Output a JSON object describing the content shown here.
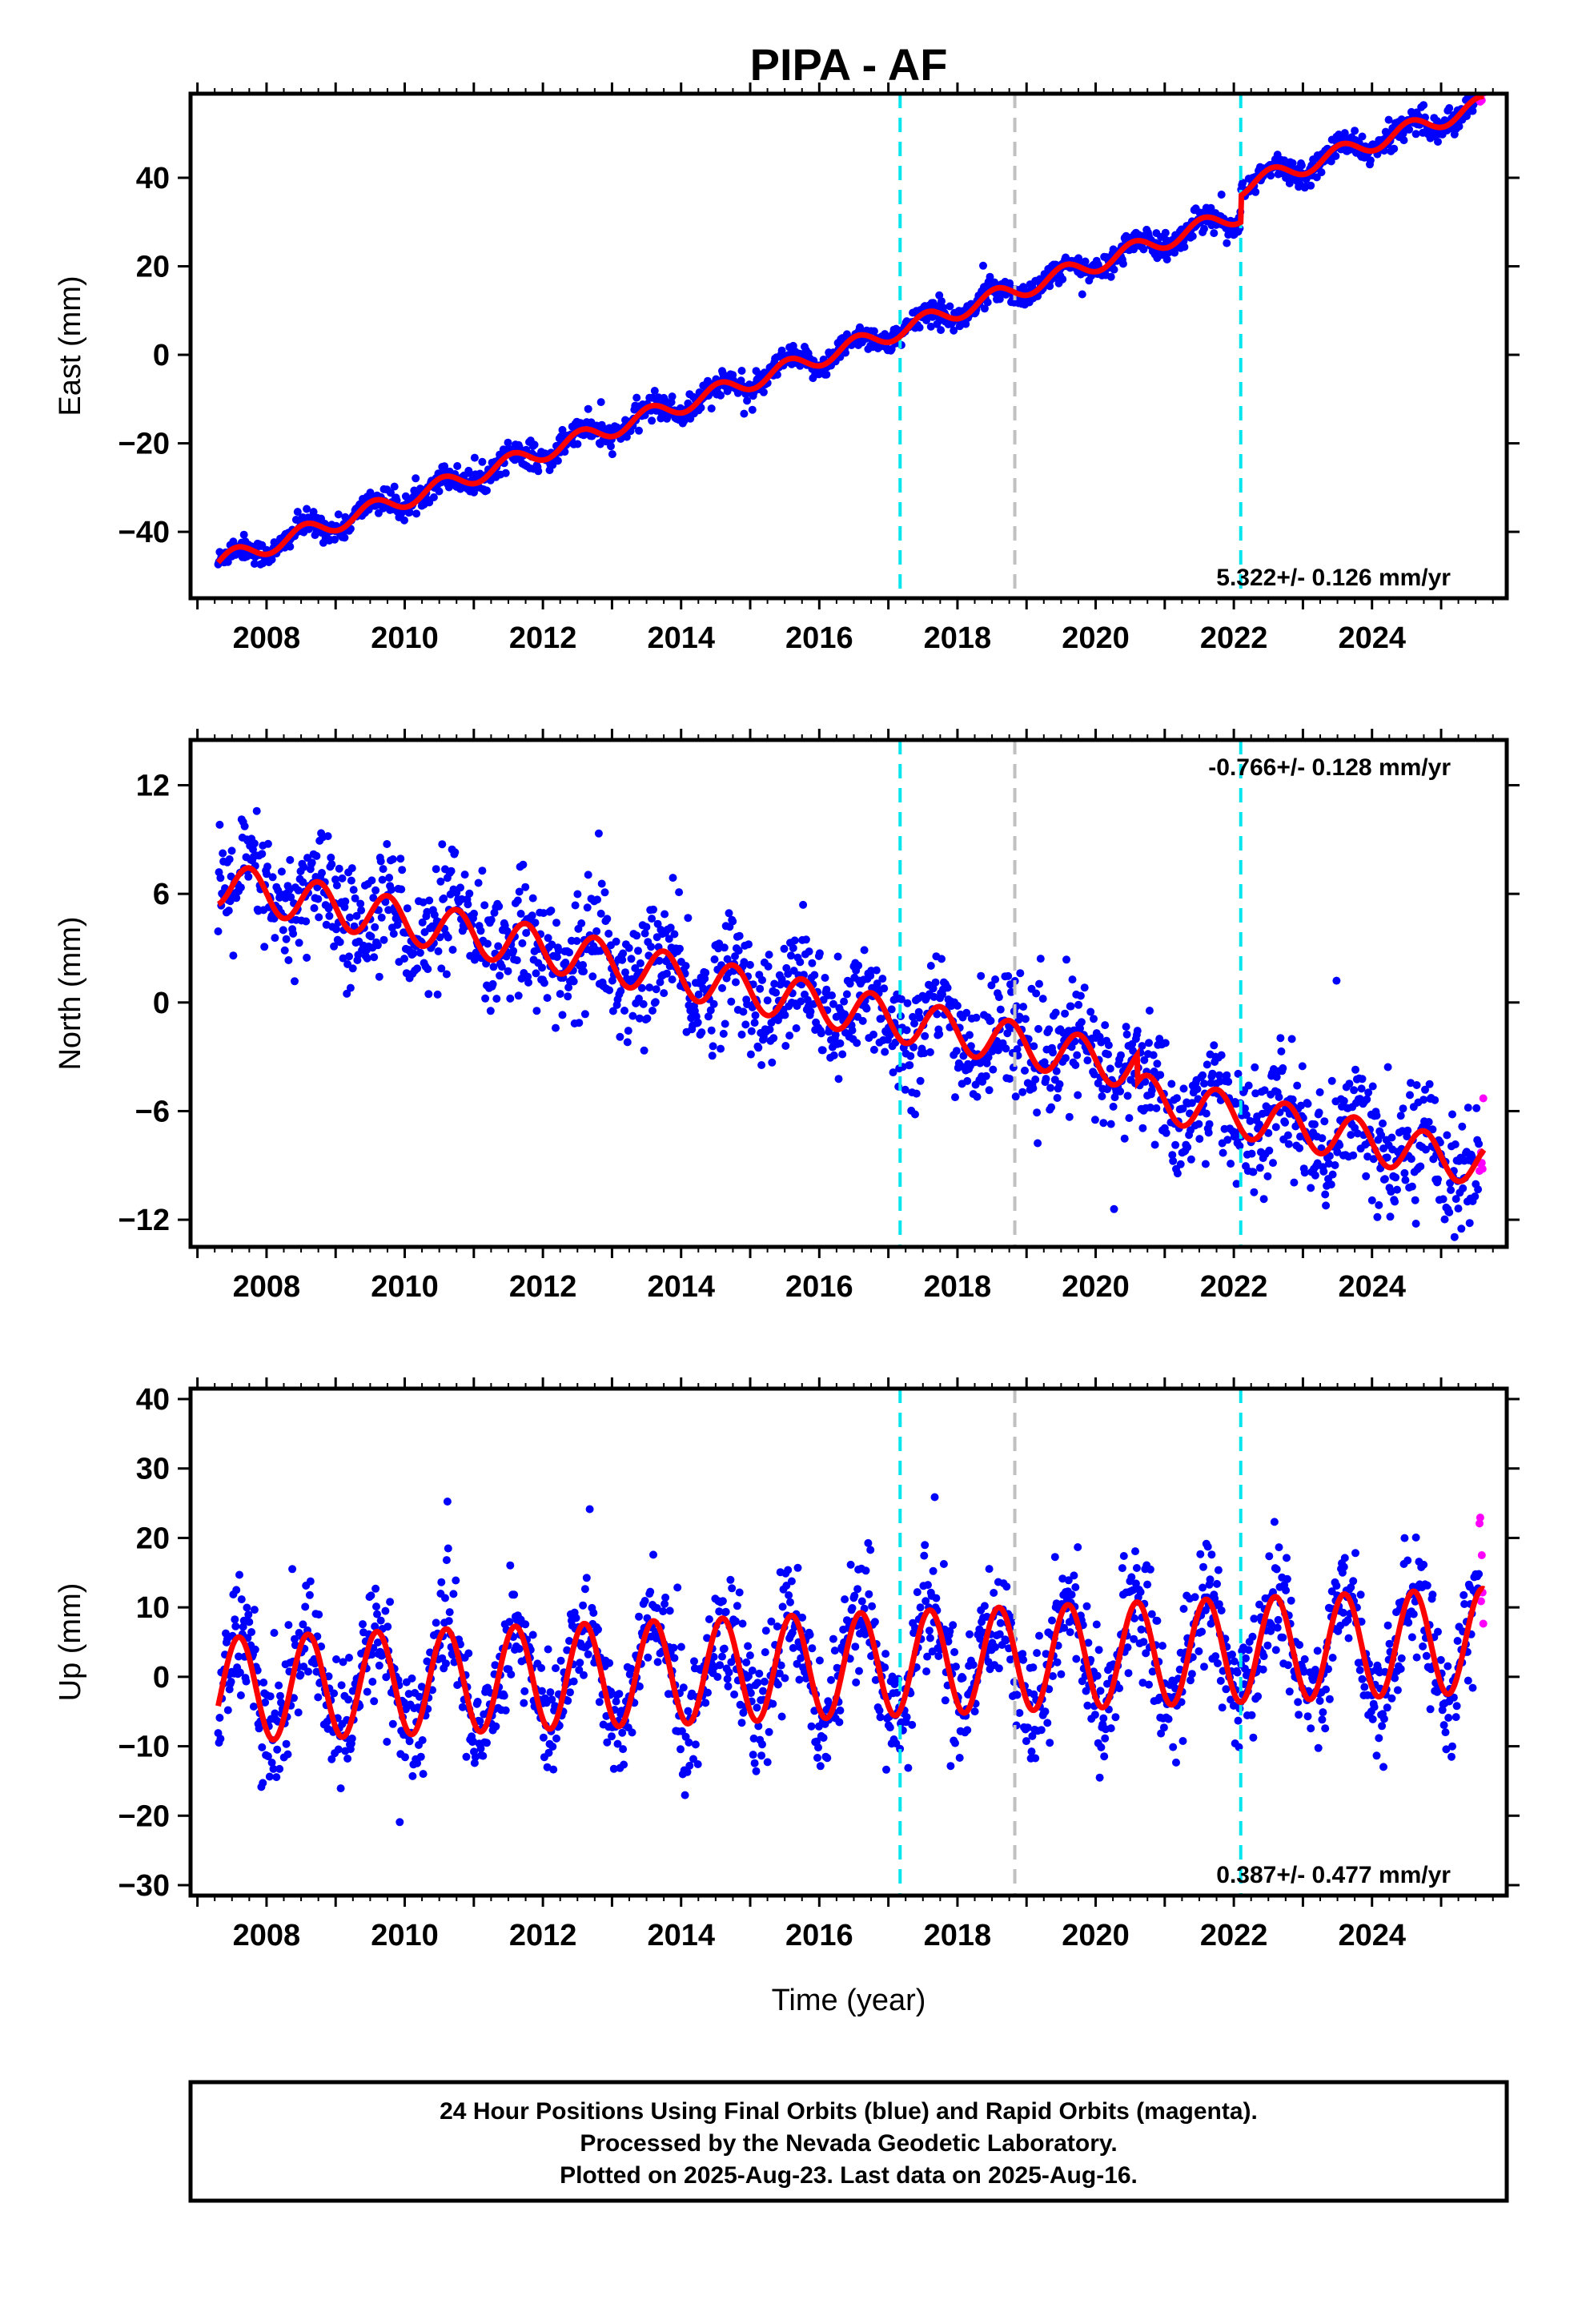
{
  "title": "PIPA - AF",
  "xlabel": "Time (year)",
  "footer": {
    "line1": "24 Hour Positions Using Final Orbits (blue) and Rapid Orbits (magenta).",
    "line2": "Processed by the Nevada Geodetic Laboratory.",
    "line3": "Plotted on 2025-Aug-23. Last data on 2025-Aug-16."
  },
  "colors": {
    "final_orbits": "#0000ff",
    "rapid_orbits": "#ff00ff",
    "model": "#ff0000",
    "equipment_change": "#00e5ee",
    "other_event": "#c0c0c0"
  },
  "chart_data": [
    {
      "type": "scatter",
      "component": "east",
      "ylabel": "East (mm)",
      "xlim": [
        2006.9,
        2025.95
      ],
      "ylim": [
        -55,
        59
      ],
      "xticks": [
        2008,
        2010,
        2012,
        2014,
        2016,
        2018,
        2020,
        2022,
        2024
      ],
      "yticks": [
        -40,
        -20,
        0,
        20,
        40
      ],
      "rate_text": "5.322+/- 0.126 mm/yr",
      "rate_position": "bottom-right",
      "trend": {
        "rate": 5.322,
        "value_at_2007": -48.5
      },
      "seasonal": {
        "amplitude": 2.0,
        "phase": 0.3
      },
      "scatter_sd": 1.4,
      "offsets": [
        {
          "year": 2022.1,
          "step": 6.0
        }
      ],
      "first_epoch": 2007.3,
      "last_epoch": 2025.62,
      "rapid_points_from": 2025.55,
      "vlines": [
        {
          "x": 2017.17,
          "color": "cyan"
        },
        {
          "x": 2018.83,
          "color": "gray"
        },
        {
          "x": 2022.1,
          "color": "cyan"
        }
      ],
      "series": [
        {
          "name": "Final Orbits (blue)",
          "color": "#0000ff"
        },
        {
          "name": "Rapid Orbits (magenta)",
          "color": "#ff00ff"
        }
      ]
    },
    {
      "type": "scatter",
      "component": "north",
      "ylabel": "North (mm)",
      "xlim": [
        2006.9,
        2025.95
      ],
      "ylim": [
        -13.5,
        14.5
      ],
      "xticks": [
        2008,
        2010,
        2012,
        2014,
        2016,
        2018,
        2020,
        2022,
        2024
      ],
      "yticks": [
        -12,
        -6,
        0,
        6,
        12
      ],
      "rate_text": "-0.766+/- 0.128 mm/yr",
      "rate_position": "top-right",
      "trend": {
        "rate": -0.766,
        "value_at_2007": 6.8
      },
      "seasonal": {
        "amplitude": 1.2,
        "phase": 0.5
      },
      "scatter_sd": 1.6,
      "offsets": [
        {
          "year": 2020.6,
          "step": -1.5
        }
      ],
      "first_epoch": 2007.3,
      "last_epoch": 2025.62,
      "rapid_points_from": 2025.55,
      "vlines": [
        {
          "x": 2017.17,
          "color": "cyan"
        },
        {
          "x": 2018.83,
          "color": "gray"
        },
        {
          "x": 2022.1,
          "color": "cyan"
        }
      ],
      "series": [
        {
          "name": "Final Orbits (blue)",
          "color": "#0000ff"
        },
        {
          "name": "Rapid Orbits (magenta)",
          "color": "#ff00ff"
        }
      ]
    },
    {
      "type": "scatter",
      "component": "up",
      "ylabel": "Up (mm)",
      "xlim": [
        2006.9,
        2025.95
      ],
      "ylim": [
        -31.5,
        41.5
      ],
      "xticks": [
        2008,
        2010,
        2012,
        2014,
        2016,
        2018,
        2020,
        2022,
        2024
      ],
      "yticks": [
        -30,
        -20,
        -10,
        0,
        10,
        20,
        30,
        40
      ],
      "rate_text": "0.387+/- 0.477 mm/yr",
      "rate_position": "bottom-right",
      "trend": {
        "rate": 0.387,
        "value_at_2007": -2.0
      },
      "seasonal": {
        "amplitude": 7.5,
        "phase": 0.35
      },
      "scatter_sd": 4.2,
      "offsets": [],
      "first_epoch": 2007.3,
      "last_epoch": 2025.62,
      "rapid_points_from": 2025.55,
      "vlines": [
        {
          "x": 2017.17,
          "color": "cyan"
        },
        {
          "x": 2018.83,
          "color": "gray"
        },
        {
          "x": 2022.1,
          "color": "cyan"
        }
      ],
      "series": [
        {
          "name": "Final Orbits (blue)",
          "color": "#0000ff"
        },
        {
          "name": "Rapid Orbits (magenta)",
          "color": "#ff00ff"
        }
      ]
    }
  ]
}
